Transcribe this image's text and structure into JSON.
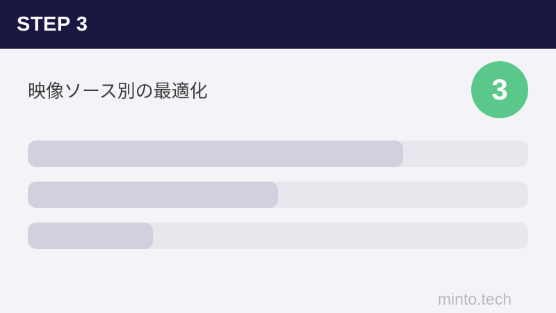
{
  "header": {
    "title": "STEP 3",
    "bg_color": "#1b1743",
    "text_color": "#ffffff"
  },
  "content": {
    "title": "映像ソース別の最適化",
    "step_badge": {
      "number": "3",
      "bg_color": "#5bc88b",
      "text_color": "#ffffff"
    },
    "progress_bars": [
      {
        "name": "bar-1",
        "percent": 75
      },
      {
        "name": "bar-2",
        "percent": 50
      },
      {
        "name": "bar-3",
        "percent": 25
      }
    ],
    "colors": {
      "background": "#f4f4f8",
      "bar_track": "#e7e7ee",
      "bar_fill": "#d1d1de",
      "title_text": "#3d3d3d"
    }
  },
  "footer": {
    "brand": "minto.tech",
    "text_color": "#b8b8c3"
  }
}
